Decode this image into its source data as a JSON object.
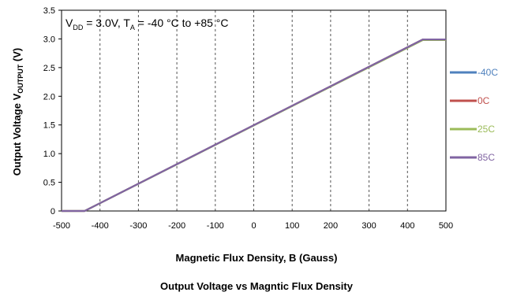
{
  "chart_data": {
    "type": "line",
    "title": "Output Voltage vs Magntic Flux Density",
    "xlabel": "Magnetic Flux Density, B (Gauss)",
    "ylabel": {
      "main": "Output Voltage V",
      "subscript": "OUTPUT",
      "unit": " (V)"
    },
    "annotation": {
      "v": "V",
      "v_sub": "DD",
      "mid": " = 3.0V, T",
      "t_sub": "A",
      "tail": " = -40 °C to +85 °C"
    },
    "xlim": [
      -500,
      500
    ],
    "ylim": [
      0,
      3.5
    ],
    "x_ticks": [
      "-500",
      "-400",
      "-300",
      "-200",
      "-100",
      "0",
      "100",
      "200",
      "300",
      "400",
      "500"
    ],
    "y_ticks": [
      "0",
      "0.5",
      "1.0",
      "1.5",
      "2.0",
      "2.5",
      "3.0",
      "3.5"
    ],
    "grid": {
      "vertical": true,
      "horizontal": false
    },
    "legend_position": "right",
    "series": [
      {
        "name": "-40C",
        "color": "#4f81bd",
        "x": [
          -500,
          -440,
          440,
          500
        ],
        "y": [
          0,
          0,
          2.99,
          2.99
        ]
      },
      {
        "name": "0C",
        "color": "#c0504d",
        "x": [
          -500,
          -440,
          440,
          500
        ],
        "y": [
          0,
          0,
          2.99,
          2.99
        ]
      },
      {
        "name": "25C",
        "color": "#9bbb59",
        "x": [
          -500,
          -440,
          440,
          500
        ],
        "y": [
          0,
          0,
          2.98,
          2.98
        ]
      },
      {
        "name": "85C",
        "color": "#8064a2",
        "x": [
          -500,
          -440,
          440,
          500
        ],
        "y": [
          0,
          0,
          2.99,
          2.99
        ]
      }
    ]
  }
}
